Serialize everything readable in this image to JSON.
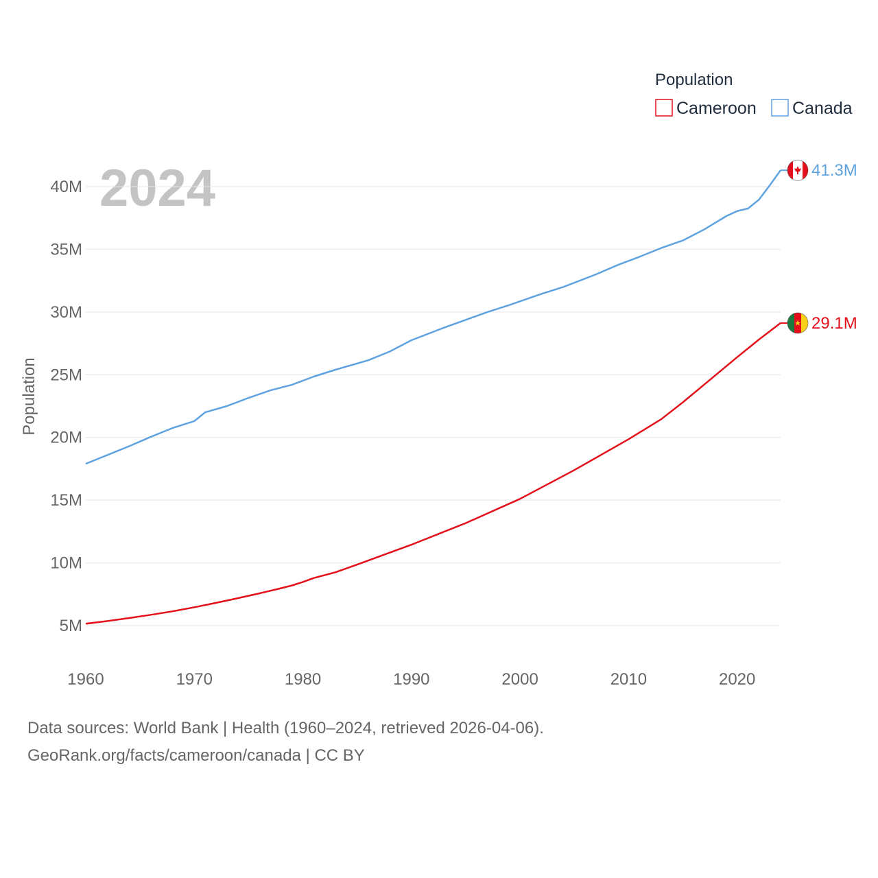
{
  "chart_data": {
    "type": "line",
    "title": "",
    "year_label": "2024",
    "legend_title": "Population",
    "xlabel": "",
    "ylabel": "Population",
    "xlim": [
      1960,
      2024
    ],
    "ylim": [
      3000000,
      42000000
    ],
    "x_ticks": [
      1960,
      1970,
      1980,
      1990,
      2000,
      2010,
      2020
    ],
    "y_ticks": [
      {
        "value": 5000000,
        "label": "5M"
      },
      {
        "value": 10000000,
        "label": "10M"
      },
      {
        "value": 15000000,
        "label": "15M"
      },
      {
        "value": 20000000,
        "label": "20M"
      },
      {
        "value": 25000000,
        "label": "25M"
      },
      {
        "value": 30000000,
        "label": "30M"
      },
      {
        "value": 35000000,
        "label": "35M"
      },
      {
        "value": 40000000,
        "label": "40M"
      }
    ],
    "series": [
      {
        "name": "Cameroon",
        "color": "#e3101b",
        "end_label": "29.1M",
        "flag_icon": "cameroon-flag-icon",
        "x": [
          1960,
          1962,
          1964,
          1966,
          1968,
          1970,
          1972,
          1974,
          1976,
          1978,
          1979,
          1980,
          1981,
          1983,
          1985,
          1990,
          1995,
          2000,
          2005,
          2010,
          2013,
          2015,
          2020,
          2022,
          2024
        ],
        "values": [
          5150000,
          5360000,
          5600000,
          5860000,
          6140000,
          6460000,
          6810000,
          7180000,
          7570000,
          7980000,
          8200000,
          8480000,
          8790000,
          9250000,
          9860000,
          11450000,
          13170000,
          15100000,
          17400000,
          19860000,
          21450000,
          22800000,
          26400000,
          27800000,
          29120000
        ]
      },
      {
        "name": "Canada",
        "color": "#5fa2e0",
        "end_label": "41.3M",
        "flag_icon": "canada-flag-icon",
        "x": [
          1960,
          1962,
          1964,
          1966,
          1968,
          1970,
          1971,
          1973,
          1975,
          1977,
          1979,
          1981,
          1983,
          1986,
          1988,
          1990,
          1993,
          1997,
          1999,
          2002,
          2004,
          2007,
          2009,
          2011,
          2013,
          2015,
          2017,
          2019,
          2020,
          2021,
          2022,
          2023,
          2024
        ],
        "values": [
          17900000,
          18600000,
          19300000,
          20050000,
          20750000,
          21300000,
          22000000,
          22500000,
          23150000,
          23750000,
          24200000,
          24850000,
          25400000,
          26150000,
          26850000,
          27750000,
          28750000,
          30000000,
          30550000,
          31450000,
          32000000,
          33000000,
          33750000,
          34400000,
          35100000,
          35700000,
          36600000,
          37650000,
          38050000,
          38250000,
          38950000,
          40100000,
          41300000
        ]
      }
    ]
  },
  "footer": {
    "line1": "Data sources: World Bank | Health (1960–2024, retrieved 2026-04-06).",
    "line2": "GeoRank.org/facts/cameroon/canada | CC BY"
  }
}
